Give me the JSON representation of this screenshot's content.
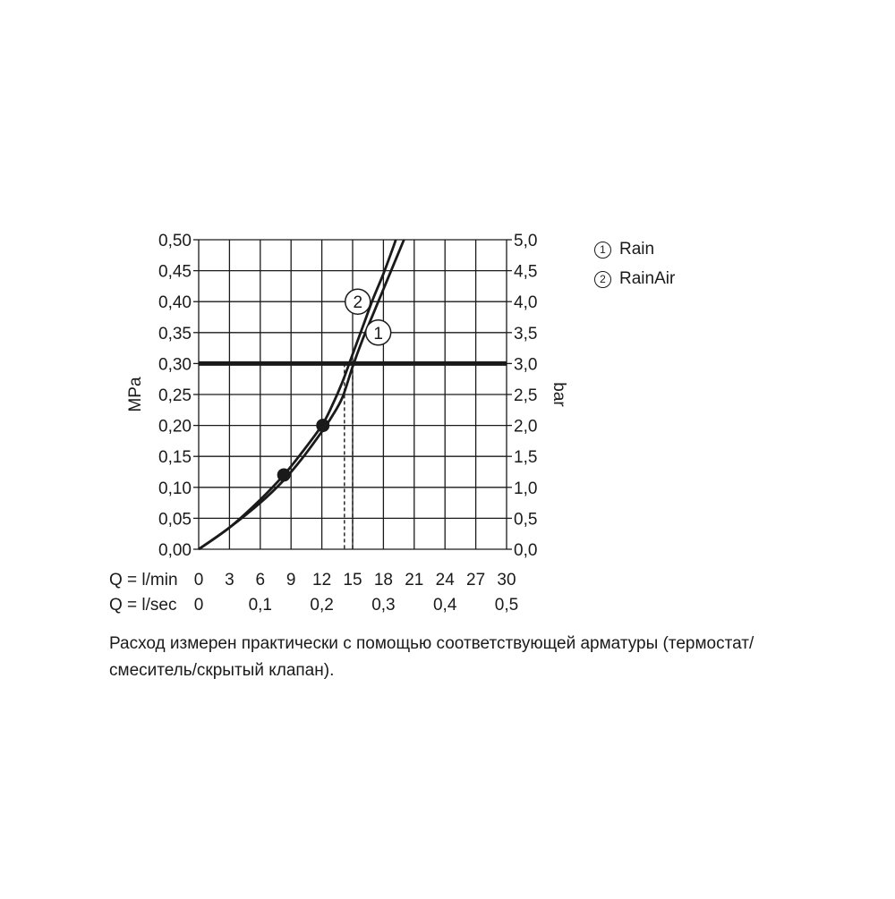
{
  "chart_data": {
    "type": "line",
    "x_axis_primary": {
      "label": "Q = l/min",
      "range": [
        0,
        30
      ],
      "ticks": [
        0,
        3,
        6,
        9,
        12,
        15,
        18,
        21,
        24,
        27,
        30
      ],
      "tick_labels": [
        "0",
        "3",
        "6",
        "9",
        "12",
        "15",
        "18",
        "21",
        "24",
        "27",
        "30"
      ]
    },
    "x_axis_secondary": {
      "label": "Q = l/sec",
      "ticks": [
        0,
        0.1,
        0.2,
        0.3,
        0.4,
        0.5
      ],
      "tick_labels": [
        "0",
        "0,1",
        "0,2",
        "0,3",
        "0,4",
        "0,5"
      ]
    },
    "y_axis_left": {
      "label": "MPa",
      "range": [
        0,
        0.5
      ],
      "ticks": [
        0,
        0.05,
        0.1,
        0.15,
        0.2,
        0.25,
        0.3,
        0.35,
        0.4,
        0.45,
        0.5
      ],
      "tick_labels": [
        "0,00",
        "0,05",
        "0,10",
        "0,15",
        "0,20",
        "0,25",
        "0,30",
        "0,35",
        "0,40",
        "0,45",
        "0,50"
      ]
    },
    "y_axis_right": {
      "label": "bar",
      "range": [
        0,
        5
      ],
      "ticks": [
        0,
        0.5,
        1,
        1.5,
        2,
        2.5,
        3,
        3.5,
        4,
        4.5,
        5
      ],
      "tick_labels": [
        "0,0",
        "0,5",
        "1,0",
        "1,5",
        "2,0",
        "2,5",
        "3,0",
        "3,5",
        "4,0",
        "4,5",
        "5,0"
      ]
    },
    "grid": true,
    "series": [
      {
        "marker": "1",
        "name": "Rain",
        "x": [
          0,
          3,
          6,
          8.2,
          10,
          12,
          13,
          14,
          15,
          16,
          17,
          18,
          19,
          20
        ],
        "y": [
          0,
          0.035,
          0.075,
          0.11,
          0.145,
          0.19,
          0.215,
          0.245,
          0.295,
          0.34,
          0.38,
          0.42,
          0.46,
          0.5
        ]
      },
      {
        "marker": "2",
        "name": "RainAir",
        "x": [
          0,
          3,
          6,
          8.3,
          10,
          12,
          13,
          14,
          15,
          16,
          17,
          18,
          19,
          19.2
        ],
        "y": [
          0,
          0.035,
          0.08,
          0.12,
          0.155,
          0.2,
          0.232,
          0.27,
          0.315,
          0.36,
          0.405,
          0.445,
          0.49,
          0.5
        ]
      }
    ],
    "reference_line": {
      "y": 0.3
    },
    "markers": [
      {
        "x": 8.3,
        "y": 0.12
      },
      {
        "x": 12.1,
        "y": 0.2
      }
    ],
    "dashed_drops": [
      {
        "x": 14.2,
        "y": 0.3
      },
      {
        "x": 15.0,
        "y": 0.3
      }
    ],
    "curve_labels": [
      {
        "text": "2",
        "x": 15.5,
        "y": 0.4
      },
      {
        "text": "1",
        "x": 17.5,
        "y": 0.35
      }
    ],
    "legend": {
      "placement": "right",
      "items": [
        {
          "symbol": "1",
          "label": "Rain"
        },
        {
          "symbol": "2",
          "label": "RainAir"
        }
      ]
    }
  },
  "caption": "Расход измерен практически с помощью соответствующей арматуры (термостат/ смеситель/скрытый клапан)."
}
